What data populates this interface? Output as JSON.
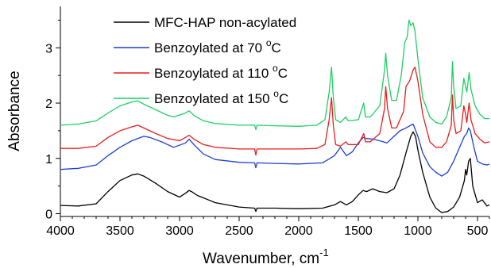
{
  "chart_data": {
    "type": "line",
    "xlabel": "Wavenumber, cm",
    "xlabel_sup": "-1",
    "ylabel": "Absorbance",
    "xlim": [
      4000,
      400
    ],
    "ylim": [
      -0.05,
      3.75
    ],
    "x_reversed": true,
    "grid": false,
    "legend_position": "top-left",
    "x_ticks": [
      4000,
      3500,
      3000,
      2500,
      2000,
      1500,
      1000,
      500
    ],
    "y_ticks": [
      0,
      1,
      2,
      3
    ],
    "series": [
      {
        "name": "MFC-HAP non-acylated",
        "color": "#000000",
        "points": [
          [
            4000,
            0.15
          ],
          [
            3850,
            0.14
          ],
          [
            3700,
            0.18
          ],
          [
            3600,
            0.4
          ],
          [
            3500,
            0.6
          ],
          [
            3400,
            0.7
          ],
          [
            3350,
            0.72
          ],
          [
            3300,
            0.68
          ],
          [
            3200,
            0.55
          ],
          [
            3100,
            0.4
          ],
          [
            3000,
            0.3
          ],
          [
            2950,
            0.37
          ],
          [
            2920,
            0.42
          ],
          [
            2900,
            0.4
          ],
          [
            2850,
            0.33
          ],
          [
            2700,
            0.2
          ],
          [
            2500,
            0.12
          ],
          [
            2370,
            0.1
          ],
          [
            2360,
            0.04
          ],
          [
            2350,
            0.1
          ],
          [
            2200,
            0.1
          ],
          [
            2000,
            0.09
          ],
          [
            1800,
            0.1
          ],
          [
            1700,
            0.16
          ],
          [
            1650,
            0.22
          ],
          [
            1600,
            0.16
          ],
          [
            1550,
            0.22
          ],
          [
            1500,
            0.34
          ],
          [
            1460,
            0.42
          ],
          [
            1430,
            0.4
          ],
          [
            1380,
            0.45
          ],
          [
            1320,
            0.4
          ],
          [
            1260,
            0.38
          ],
          [
            1200,
            0.45
          ],
          [
            1150,
            0.7
          ],
          [
            1100,
            1.1
          ],
          [
            1060,
            1.4
          ],
          [
            1040,
            1.48
          ],
          [
            1020,
            1.4
          ],
          [
            1000,
            1.15
          ],
          [
            960,
            0.75
          ],
          [
            900,
            0.3
          ],
          [
            850,
            0.1
          ],
          [
            800,
            0.02
          ],
          [
            750,
            0.04
          ],
          [
            700,
            0.12
          ],
          [
            650,
            0.3
          ],
          [
            610,
            0.6
          ],
          [
            600,
            0.8
          ],
          [
            590,
            0.7
          ],
          [
            575,
            0.95
          ],
          [
            560,
            1.0
          ],
          [
            540,
            0.5
          ],
          [
            500,
            0.2
          ],
          [
            460,
            0.25
          ],
          [
            420,
            0.14
          ],
          [
            400,
            0.16
          ]
        ]
      },
      {
        "name": "Benzoylated at 70 °C",
        "color": "#1f3fcf",
        "points": [
          [
            4000,
            0.8
          ],
          [
            3850,
            0.82
          ],
          [
            3700,
            0.88
          ],
          [
            3600,
            1.05
          ],
          [
            3500,
            1.2
          ],
          [
            3400,
            1.32
          ],
          [
            3300,
            1.4
          ],
          [
            3250,
            1.38
          ],
          [
            3150,
            1.3
          ],
          [
            3050,
            1.2
          ],
          [
            2950,
            1.28
          ],
          [
            2920,
            1.35
          ],
          [
            2880,
            1.25
          ],
          [
            2800,
            1.08
          ],
          [
            2700,
            0.98
          ],
          [
            2500,
            0.93
          ],
          [
            2370,
            0.92
          ],
          [
            2360,
            0.83
          ],
          [
            2350,
            0.92
          ],
          [
            2200,
            0.91
          ],
          [
            2000,
            0.9
          ],
          [
            1800,
            0.92
          ],
          [
            1700,
            1.05
          ],
          [
            1650,
            1.2
          ],
          [
            1600,
            1.05
          ],
          [
            1550,
            1.12
          ],
          [
            1500,
            1.28
          ],
          [
            1460,
            1.38
          ],
          [
            1430,
            1.36
          ],
          [
            1380,
            1.35
          ],
          [
            1320,
            1.32
          ],
          [
            1260,
            1.28
          ],
          [
            1200,
            1.4
          ],
          [
            1150,
            1.5
          ],
          [
            1100,
            1.55
          ],
          [
            1060,
            1.6
          ],
          [
            1040,
            1.62
          ],
          [
            1000,
            1.4
          ],
          [
            960,
            1.1
          ],
          [
            900,
            0.85
          ],
          [
            850,
            0.75
          ],
          [
            800,
            0.68
          ],
          [
            750,
            0.75
          ],
          [
            700,
            0.95
          ],
          [
            650,
            1.2
          ],
          [
            610,
            1.4
          ],
          [
            590,
            1.45
          ],
          [
            575,
            1.55
          ],
          [
            560,
            1.5
          ],
          [
            530,
            1.2
          ],
          [
            500,
            0.95
          ],
          [
            460,
            0.9
          ],
          [
            420,
            0.88
          ],
          [
            400,
            0.9
          ]
        ]
      },
      {
        "name": "Benzoylated at 110 °C",
        "color": "#e81e1e",
        "points": [
          [
            4000,
            1.18
          ],
          [
            3850,
            1.18
          ],
          [
            3700,
            1.22
          ],
          [
            3600,
            1.38
          ],
          [
            3500,
            1.5
          ],
          [
            3400,
            1.57
          ],
          [
            3350,
            1.6
          ],
          [
            3300,
            1.55
          ],
          [
            3200,
            1.45
          ],
          [
            3100,
            1.36
          ],
          [
            3000,
            1.32
          ],
          [
            2950,
            1.38
          ],
          [
            2920,
            1.42
          ],
          [
            2880,
            1.35
          ],
          [
            2800,
            1.25
          ],
          [
            2700,
            1.2
          ],
          [
            2500,
            1.17
          ],
          [
            2370,
            1.17
          ],
          [
            2360,
            1.06
          ],
          [
            2350,
            1.17
          ],
          [
            2200,
            1.17
          ],
          [
            2000,
            1.17
          ],
          [
            1850,
            1.18
          ],
          [
            1780,
            1.25
          ],
          [
            1745,
            1.7
          ],
          [
            1725,
            2.1
          ],
          [
            1710,
            1.6
          ],
          [
            1690,
            1.25
          ],
          [
            1650,
            1.22
          ],
          [
            1605,
            1.3
          ],
          [
            1585,
            1.25
          ],
          [
            1500,
            1.25
          ],
          [
            1455,
            1.45
          ],
          [
            1440,
            1.3
          ],
          [
            1400,
            1.3
          ],
          [
            1320,
            1.45
          ],
          [
            1280,
            1.9
          ],
          [
            1270,
            2.3
          ],
          [
            1255,
            1.9
          ],
          [
            1220,
            1.55
          ],
          [
            1180,
            1.55
          ],
          [
            1120,
            1.85
          ],
          [
            1100,
            2.3
          ],
          [
            1070,
            2.4
          ],
          [
            1040,
            2.6
          ],
          [
            1025,
            2.65
          ],
          [
            1000,
            2.4
          ],
          [
            960,
            1.8
          ],
          [
            900,
            1.3
          ],
          [
            850,
            1.2
          ],
          [
            800,
            1.2
          ],
          [
            760,
            1.3
          ],
          [
            720,
            1.6
          ],
          [
            710,
            2.15
          ],
          [
            700,
            1.7
          ],
          [
            680,
            1.45
          ],
          [
            640,
            1.5
          ],
          [
            615,
            1.95
          ],
          [
            600,
            1.8
          ],
          [
            590,
            1.65
          ],
          [
            570,
            2.0
          ],
          [
            555,
            1.7
          ],
          [
            520,
            1.45
          ],
          [
            480,
            1.35
          ],
          [
            440,
            1.28
          ],
          [
            400,
            1.3
          ]
        ]
      },
      {
        "name": "Benzoylated at 150 °C",
        "color": "#1fcf64",
        "points": [
          [
            4000,
            1.6
          ],
          [
            3850,
            1.62
          ],
          [
            3700,
            1.68
          ],
          [
            3600,
            1.82
          ],
          [
            3500,
            1.95
          ],
          [
            3400,
            2.02
          ],
          [
            3350,
            2.04
          ],
          [
            3300,
            1.98
          ],
          [
            3200,
            1.88
          ],
          [
            3100,
            1.78
          ],
          [
            3050,
            1.75
          ],
          [
            2950,
            1.82
          ],
          [
            2920,
            1.86
          ],
          [
            2880,
            1.78
          ],
          [
            2800,
            1.68
          ],
          [
            2700,
            1.63
          ],
          [
            2500,
            1.6
          ],
          [
            2370,
            1.6
          ],
          [
            2360,
            1.52
          ],
          [
            2350,
            1.6
          ],
          [
            2200,
            1.59
          ],
          [
            2000,
            1.58
          ],
          [
            1850,
            1.6
          ],
          [
            1780,
            1.7
          ],
          [
            1745,
            2.2
          ],
          [
            1725,
            2.65
          ],
          [
            1710,
            2.1
          ],
          [
            1690,
            1.7
          ],
          [
            1650,
            1.65
          ],
          [
            1605,
            1.75
          ],
          [
            1585,
            1.68
          ],
          [
            1500,
            1.7
          ],
          [
            1455,
            2.0
          ],
          [
            1440,
            1.75
          ],
          [
            1400,
            1.75
          ],
          [
            1320,
            1.95
          ],
          [
            1280,
            2.6
          ],
          [
            1270,
            2.9
          ],
          [
            1255,
            2.5
          ],
          [
            1220,
            2.05
          ],
          [
            1180,
            2.05
          ],
          [
            1140,
            2.5
          ],
          [
            1110,
            3.1
          ],
          [
            1090,
            3.2
          ],
          [
            1075,
            3.5
          ],
          [
            1060,
            3.4
          ],
          [
            1040,
            3.45
          ],
          [
            1025,
            3.3
          ],
          [
            1000,
            2.8
          ],
          [
            960,
            2.1
          ],
          [
            900,
            1.75
          ],
          [
            850,
            1.65
          ],
          [
            800,
            1.62
          ],
          [
            760,
            1.75
          ],
          [
            720,
            2.1
          ],
          [
            710,
            2.75
          ],
          [
            700,
            2.3
          ],
          [
            680,
            1.9
          ],
          [
            640,
            1.95
          ],
          [
            615,
            2.45
          ],
          [
            600,
            2.3
          ],
          [
            590,
            2.2
          ],
          [
            570,
            2.55
          ],
          [
            555,
            2.25
          ],
          [
            520,
            1.95
          ],
          [
            480,
            1.8
          ],
          [
            440,
            1.72
          ],
          [
            400,
            1.72
          ]
        ]
      }
    ]
  },
  "legend": [
    {
      "label": "MFC-HAP non-acylated",
      "superscript": "",
      "tail": ""
    },
    {
      "label": "Benzoylated at 70 ",
      "superscript": "o",
      "tail": "C"
    },
    {
      "label": "Benzoylated at 110 ",
      "superscript": "o",
      "tail": "C"
    },
    {
      "label": "Benzoylated at 150 ",
      "superscript": "o",
      "tail": "C"
    }
  ]
}
